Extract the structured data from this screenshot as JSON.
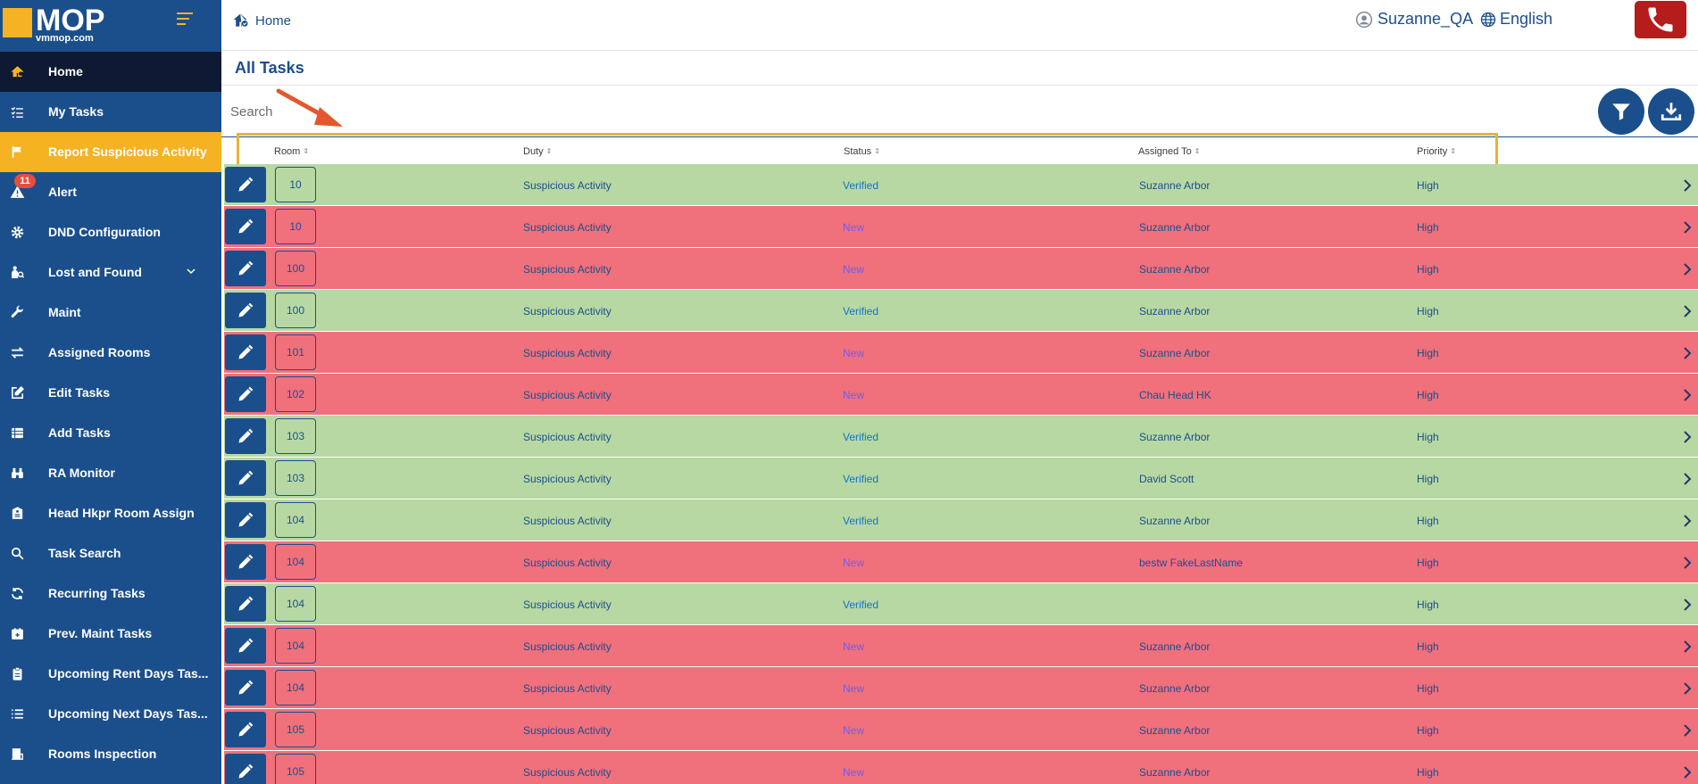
{
  "brand": {
    "name": "MOP",
    "site": "vmmop.com"
  },
  "sidebar": {
    "items": [
      {
        "label": "Home",
        "icon": "home-icon"
      },
      {
        "label": "My Tasks",
        "icon": "list-check-icon"
      },
      {
        "label": "Report Suspicious Activity",
        "icon": "flag-icon"
      },
      {
        "label": "Alert",
        "icon": "warning-icon",
        "badge": "11"
      },
      {
        "label": "DND Configuration",
        "icon": "gear-icon"
      },
      {
        "label": "Lost and Found",
        "icon": "person-search-icon"
      },
      {
        "label": "Maint",
        "icon": "wrench-icon"
      },
      {
        "label": "Assigned Rooms",
        "icon": "swap-icon"
      },
      {
        "label": "Edit Tasks",
        "icon": "edit-square-icon"
      },
      {
        "label": "Add Tasks",
        "icon": "table-list-icon"
      },
      {
        "label": "RA Monitor",
        "icon": "binoculars-icon"
      },
      {
        "label": "Head Hkpr Room Assign",
        "icon": "hotel-icon"
      },
      {
        "label": "Task Search",
        "icon": "search-icon"
      },
      {
        "label": "Recurring Tasks",
        "icon": "refresh-icon"
      },
      {
        "label": "Prev. Maint Tasks",
        "icon": "calendar-icon"
      },
      {
        "label": "Upcoming Rent Days Tas...",
        "icon": "clipboard-icon"
      },
      {
        "label": "Upcoming Next Days Tas...",
        "icon": "list-icon"
      },
      {
        "label": "Rooms Inspection",
        "icon": "inspection-icon"
      }
    ]
  },
  "topbar": {
    "breadcrumb": "Home",
    "user": "Suzanne_QA",
    "language": "English"
  },
  "main": {
    "title": "All Tasks",
    "search_placeholder": "Search",
    "columns": [
      "Room",
      "Duty",
      "Status",
      "Assigned To",
      "Priority"
    ],
    "rows": [
      {
        "room": "10",
        "duty": "Suspicious Activity",
        "status": "Verified",
        "assigned": "Suzanne Arbor",
        "priority": "High"
      },
      {
        "room": "10",
        "duty": "Suspicious Activity",
        "status": "New",
        "assigned": "Suzanne Arbor",
        "priority": "High"
      },
      {
        "room": "100",
        "duty": "Suspicious Activity",
        "status": "New",
        "assigned": "Suzanne Arbor",
        "priority": "High"
      },
      {
        "room": "100",
        "duty": "Suspicious Activity",
        "status": "Verified",
        "assigned": "Suzanne Arbor",
        "priority": "High"
      },
      {
        "room": "101",
        "duty": "Suspicious Activity",
        "status": "New",
        "assigned": "Suzanne Arbor",
        "priority": "High"
      },
      {
        "room": "102",
        "duty": "Suspicious Activity",
        "status": "New",
        "assigned": "Chau Head HK",
        "priority": "High"
      },
      {
        "room": "103",
        "duty": "Suspicious Activity",
        "status": "Verified",
        "assigned": "Suzanne Arbor",
        "priority": "High"
      },
      {
        "room": "103",
        "duty": "Suspicious Activity",
        "status": "Verified",
        "assigned": "David Scott",
        "priority": "High"
      },
      {
        "room": "104",
        "duty": "Suspicious Activity",
        "status": "Verified",
        "assigned": "Suzanne Arbor",
        "priority": "High"
      },
      {
        "room": "104",
        "duty": "Suspicious Activity",
        "status": "New",
        "assigned": "bestw FakeLastName",
        "priority": "High"
      },
      {
        "room": "104",
        "duty": "Suspicious Activity",
        "status": "Verified",
        "assigned": "",
        "priority": "High"
      },
      {
        "room": "104",
        "duty": "Suspicious Activity",
        "status": "New",
        "assigned": "Suzanne Arbor",
        "priority": "High"
      },
      {
        "room": "104",
        "duty": "Suspicious Activity",
        "status": "New",
        "assigned": "Suzanne Arbor",
        "priority": "High"
      },
      {
        "room": "105",
        "duty": "Suspicious Activity",
        "status": "New",
        "assigned": "Suzanne Arbor",
        "priority": "High"
      },
      {
        "room": "105",
        "duty": "Suspicious Activity",
        "status": "New",
        "assigned": "Suzanne Arbor",
        "priority": "High"
      }
    ]
  },
  "colors": {
    "sidebar": "#1b4f8c",
    "accent": "#f5b324",
    "row_verified": "#b8d8a3",
    "row_new": "#f0707c",
    "highlight": "#e8b23a",
    "annotation_arrow": "#e4572e"
  }
}
